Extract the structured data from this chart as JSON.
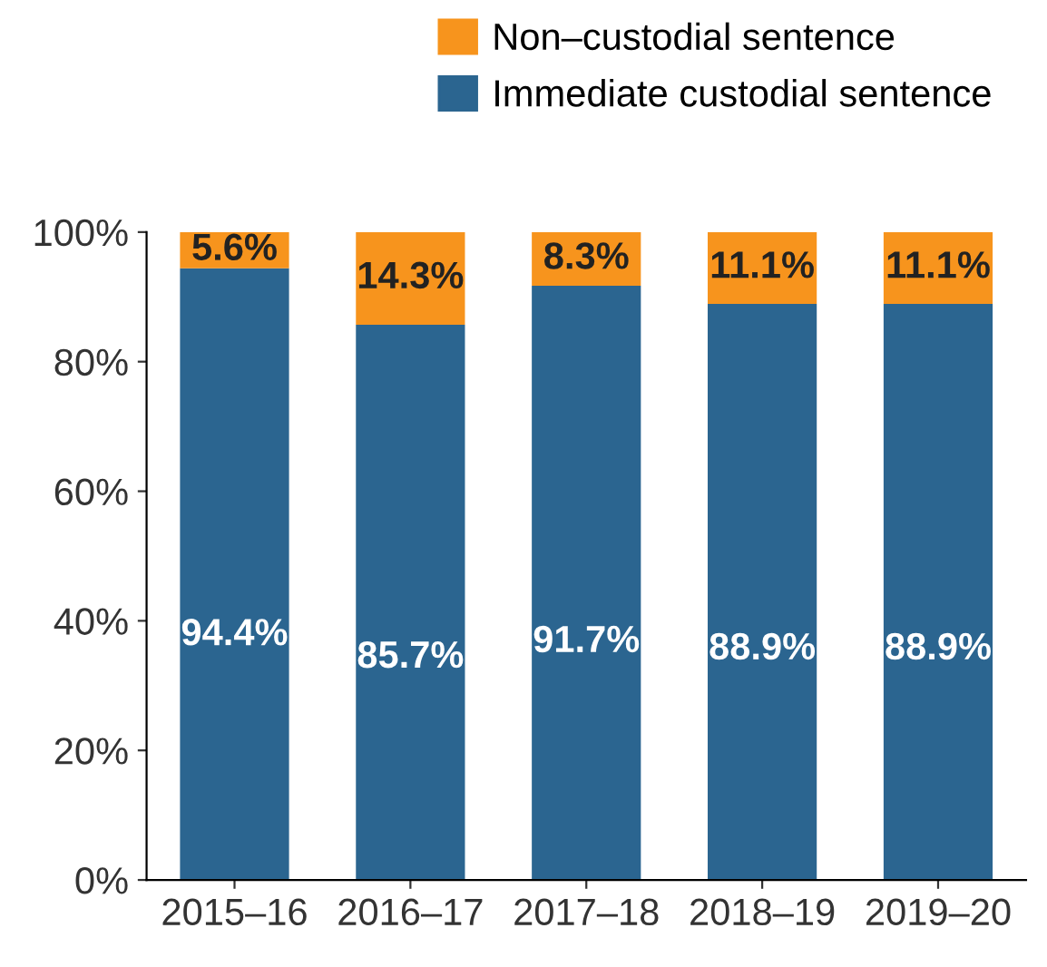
{
  "chart_data": {
    "type": "bar",
    "stacked": true,
    "categories": [
      "2015–16",
      "2016–17",
      "2017–18",
      "2018–19",
      "2019–20"
    ],
    "series": [
      {
        "name": "Immediate custodial sentence",
        "color": "#2b6590",
        "values": [
          94.4,
          85.7,
          91.7,
          88.9,
          88.9
        ],
        "value_labels": [
          "94.4%",
          "85.7%",
          "91.7%",
          "88.9%",
          "88.9%"
        ]
      },
      {
        "name": "Non–custodial sentence",
        "color": "#f7941d",
        "values": [
          5.6,
          14.3,
          8.3,
          11.1,
          11.1
        ],
        "value_labels": [
          "5.6%",
          "14.3%",
          "8.3%",
          "11.1%",
          "11.1%"
        ]
      }
    ],
    "ylim": [
      0,
      100
    ],
    "yticks": [
      {
        "value": 0,
        "label": "0%"
      },
      {
        "value": 20,
        "label": "20%"
      },
      {
        "value": 40,
        "label": "40%"
      },
      {
        "value": 60,
        "label": "60%"
      },
      {
        "value": 80,
        "label": "80%"
      },
      {
        "value": 100,
        "label": "100%"
      }
    ],
    "grid": false,
    "legend": "top right"
  }
}
